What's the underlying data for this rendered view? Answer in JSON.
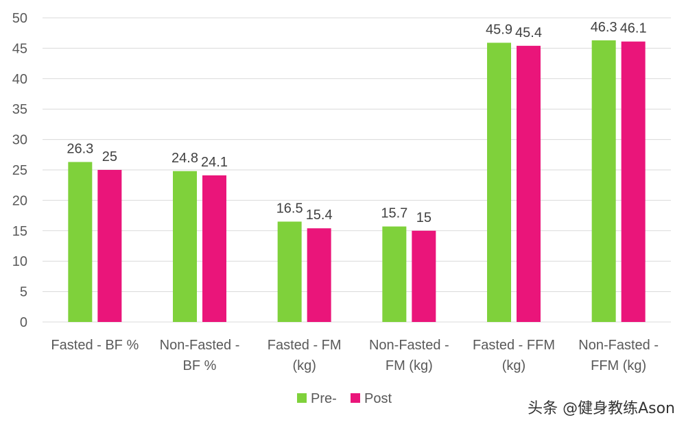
{
  "chart_data": {
    "type": "bar",
    "categories": [
      [
        "Fasted - BF %"
      ],
      [
        "Non-Fasted -",
        "BF %"
      ],
      [
        "Fasted - FM",
        "(kg)"
      ],
      [
        "Non-Fasted -",
        "FM (kg)"
      ],
      [
        "Fasted - FFM",
        "(kg)"
      ],
      [
        "Non-Fasted -",
        "FFM (kg)"
      ]
    ],
    "series": [
      {
        "name": "Pre-",
        "color": "#7fd13b",
        "values": [
          26.3,
          24.8,
          16.5,
          15.7,
          45.9,
          46.3
        ]
      },
      {
        "name": "Post",
        "color": "#ea157a",
        "values": [
          25,
          24.1,
          15.4,
          15,
          45.4,
          46.1
        ]
      }
    ],
    "ylim": [
      0,
      50
    ],
    "yticks": [
      0,
      5,
      10,
      15,
      20,
      25,
      30,
      35,
      40,
      45,
      50
    ],
    "grid": true,
    "legend": "bottom",
    "data_labels": true
  },
  "watermark": "头条 @健身教练Ason"
}
